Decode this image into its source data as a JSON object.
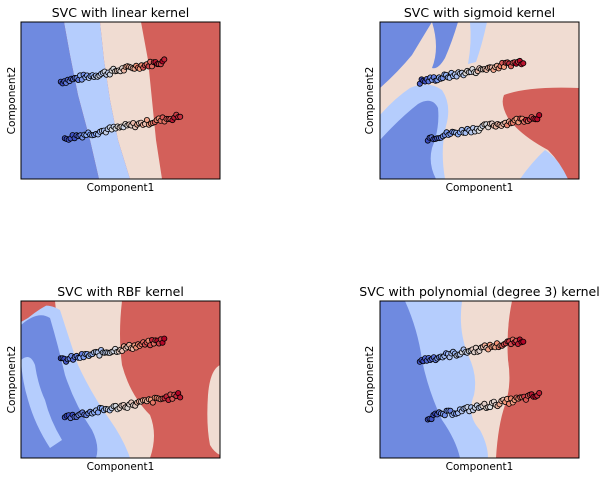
{
  "chart_data": [
    {
      "type": "decision-regions",
      "title": "SVC with linear kernel",
      "xlabel": "Component1",
      "ylabel": "Component2",
      "ticks": "none",
      "region_colors": [
        "#6f8ae0",
        "#b5cdfd",
        "#f0dcd2",
        "#d3605a"
      ],
      "point_palette": "coolwarm",
      "point_edge_color": "#000000",
      "clusters": [
        {
          "x_start": 0.2,
          "y_start": 0.62,
          "x_end": 0.72,
          "y_end": 0.75,
          "n": 60
        },
        {
          "x_start": 0.22,
          "y_start": 0.26,
          "x_end": 0.8,
          "y_end": 0.4,
          "n": 60
        }
      ]
    },
    {
      "type": "decision-regions",
      "title": "SVC with sigmoid kernel",
      "xlabel": "Component1",
      "ylabel": "Component2",
      "ticks": "none",
      "region_colors": [
        "#6f8ae0",
        "#b5cdfd",
        "#f0dcd2",
        "#d3605a"
      ],
      "point_palette": "coolwarm",
      "point_edge_color": "#000000",
      "clusters": [
        {
          "x_start": 0.2,
          "y_start": 0.62,
          "x_end": 0.72,
          "y_end": 0.75,
          "n": 60
        },
        {
          "x_start": 0.24,
          "y_start": 0.26,
          "x_end": 0.8,
          "y_end": 0.4,
          "n": 60
        }
      ]
    },
    {
      "type": "decision-regions",
      "title": "SVC with RBF kernel",
      "xlabel": "Component1",
      "ylabel": "Component2",
      "ticks": "none",
      "region_colors": [
        "#6f8ae0",
        "#b5cdfd",
        "#f0dcd2",
        "#d3605a"
      ],
      "point_palette": "coolwarm",
      "point_edge_color": "#000000",
      "clusters": [
        {
          "x_start": 0.2,
          "y_start": 0.62,
          "x_end": 0.72,
          "y_end": 0.75,
          "n": 60
        },
        {
          "x_start": 0.22,
          "y_start": 0.26,
          "x_end": 0.8,
          "y_end": 0.4,
          "n": 60
        }
      ]
    },
    {
      "type": "decision-regions",
      "title": "SVC with polynomial (degree 3) kernel",
      "xlabel": "Component1",
      "ylabel": "Component2",
      "ticks": "none",
      "region_colors": [
        "#6f8ae0",
        "#b5cdfd",
        "#f0dcd2",
        "#d3605a"
      ],
      "point_palette": "coolwarm",
      "point_edge_color": "#000000",
      "clusters": [
        {
          "x_start": 0.2,
          "y_start": 0.62,
          "x_end": 0.72,
          "y_end": 0.75,
          "n": 60
        },
        {
          "x_start": 0.24,
          "y_start": 0.26,
          "x_end": 0.8,
          "y_end": 0.4,
          "n": 60
        }
      ]
    }
  ]
}
